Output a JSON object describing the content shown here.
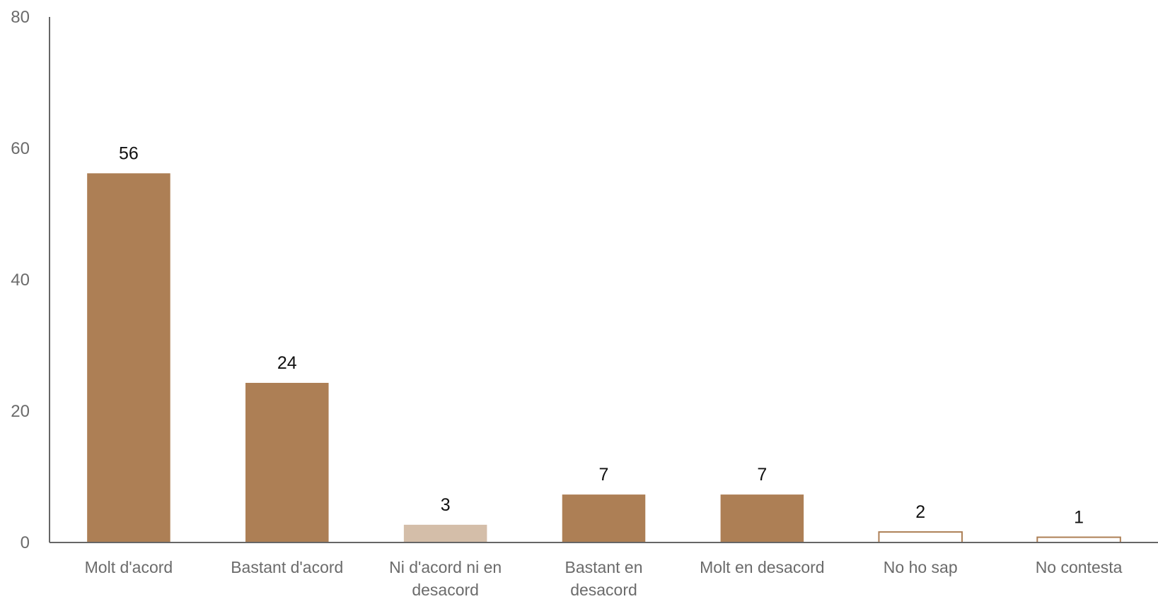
{
  "chart_data": {
    "type": "bar",
    "categories": [
      [
        "Molt d'acord"
      ],
      [
        "Bastant d'acord"
      ],
      [
        "Ni d'acord ni en",
        "desacord"
      ],
      [
        "Bastant en",
        "desacord"
      ],
      [
        "Molt en desacord"
      ],
      [
        "No ho sap"
      ],
      [
        "No contesta"
      ]
    ],
    "values": [
      56.2,
      24.3,
      2.7,
      7.3,
      7.3,
      1.6,
      0.8
    ],
    "data_labels": [
      "56",
      "24",
      "3",
      "7",
      "7",
      "2",
      "1"
    ],
    "bar_styles": [
      "solid",
      "solid",
      "light",
      "solid",
      "solid",
      "outline",
      "outline"
    ],
    "ylim": [
      0,
      80
    ],
    "yticks": [
      0,
      20,
      40,
      60,
      80
    ],
    "colors": {
      "bar": "#ad7f55",
      "bar_light": "#d4bea9",
      "outline": "#ad7f55",
      "axis": "#666666"
    },
    "grid": false,
    "legend": "none"
  }
}
